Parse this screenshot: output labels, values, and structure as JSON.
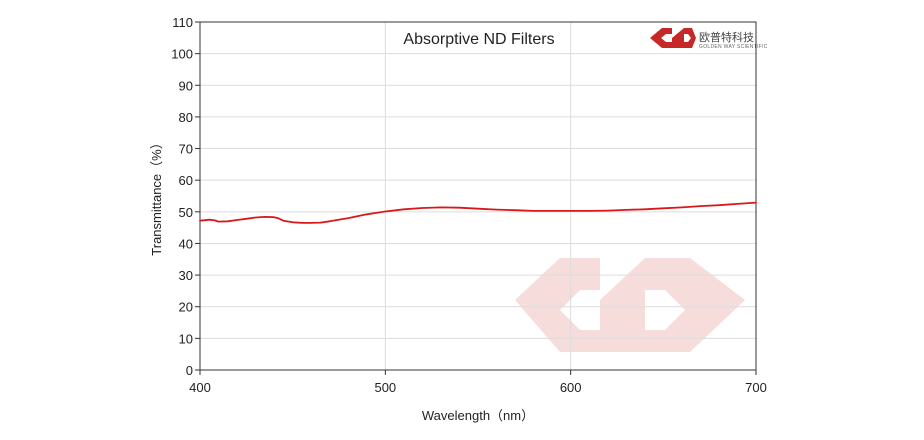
{
  "chart_data": {
    "type": "line",
    "title": "Absorptive ND Filters",
    "xlabel": "Wavelength（nm）",
    "ylabel": "Transmittance（%）",
    "xlim": [
      400,
      700
    ],
    "ylim": [
      0,
      110
    ],
    "xticks": [
      400,
      500,
      600,
      700
    ],
    "yticks": [
      0,
      10,
      20,
      30,
      40,
      50,
      60,
      70,
      80,
      90,
      100,
      110
    ],
    "grid": true,
    "series": [
      {
        "color": "#d7191c",
        "x": [
          400,
          405,
          408,
          410,
          415,
          420,
          425,
          430,
          435,
          440,
          442,
          445,
          450,
          455,
          460,
          465,
          470,
          480,
          490,
          500,
          510,
          520,
          530,
          540,
          550,
          560,
          570,
          580,
          590,
          600,
          610,
          620,
          630,
          640,
          650,
          660,
          670,
          680,
          690,
          700
        ],
        "y": [
          47.2,
          47.5,
          47.3,
          46.9,
          47.0,
          47.4,
          47.8,
          48.2,
          48.4,
          48.3,
          48.0,
          47.2,
          46.7,
          46.5,
          46.5,
          46.6,
          47.0,
          48.0,
          49.2,
          50.1,
          50.8,
          51.2,
          51.4,
          51.3,
          51.0,
          50.7,
          50.5,
          50.3,
          50.3,
          50.3,
          50.3,
          50.4,
          50.6,
          50.8,
          51.1,
          51.4,
          51.8,
          52.1,
          52.5,
          52.9
        ]
      }
    ]
  },
  "logo": {
    "brand_cn": "欧普特科技",
    "brand_en": "GOLDEN WAY SCIENTIFIC",
    "color": "#c62828",
    "watermark_color": "#f6dcdc"
  }
}
